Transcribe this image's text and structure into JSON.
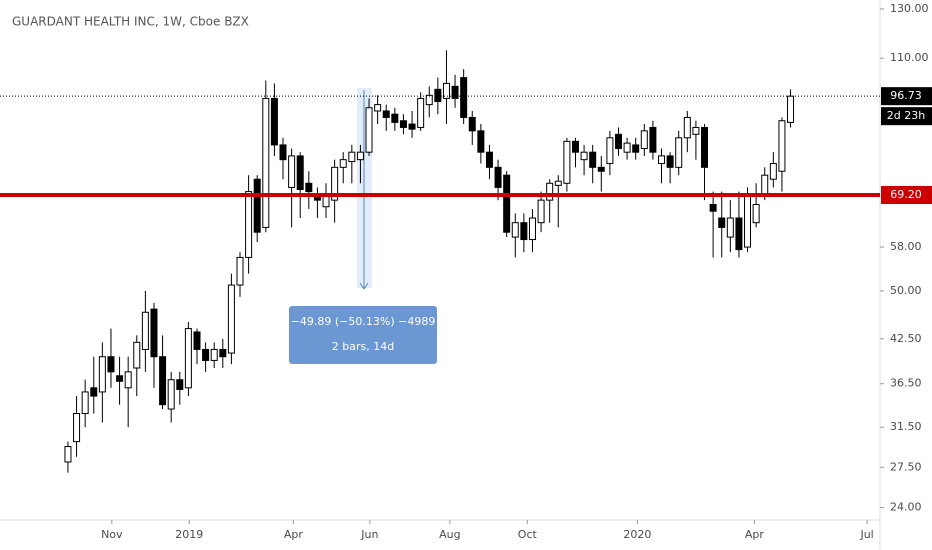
{
  "chart_data": {
    "type": "candlestick",
    "title": "GUARDANT HEALTH INC, 1W, Cboe BZX",
    "x": [
      0,
      1,
      2,
      3,
      4,
      5,
      6,
      7,
      8,
      9,
      10,
      11,
      12,
      13,
      14,
      15,
      16,
      17,
      18,
      19,
      20,
      21,
      22,
      23,
      24,
      25,
      26,
      27,
      28,
      29,
      30,
      31,
      32,
      33,
      34,
      35,
      36,
      37,
      38,
      39,
      40,
      41,
      42,
      43,
      44,
      45,
      46,
      47,
      48,
      49,
      50,
      51,
      52,
      53,
      54,
      55,
      56,
      57,
      58,
      59,
      60,
      61,
      62,
      63,
      64,
      65,
      66,
      67,
      68,
      69,
      70,
      71,
      72,
      73,
      74,
      75,
      76,
      77,
      78,
      79,
      80,
      81,
      82,
      83,
      84
    ],
    "open": [
      28,
      30,
      33,
      36,
      35.5,
      40,
      37.5,
      36,
      38.5,
      41,
      47,
      40,
      33.5,
      37,
      36,
      43.5,
      41,
      39.5,
      41,
      40.5,
      51,
      56,
      73,
      62,
      96,
      82,
      71,
      79,
      72,
      69.5,
      66.5,
      68,
      76,
      77.5,
      78,
      80,
      92,
      92,
      91,
      89,
      88,
      87,
      94,
      99,
      96,
      100,
      103,
      90,
      86,
      80,
      76,
      74,
      60,
      63,
      59.5,
      63,
      68,
      71.5,
      72,
      83,
      78,
      80,
      76,
      77,
      85,
      80,
      82,
      81,
      87,
      77,
      79,
      76,
      84,
      85,
      87,
      67,
      64,
      60,
      64,
      58,
      63,
      69,
      73,
      75,
      88.5
    ],
    "high": [
      30,
      35,
      37,
      40,
      42,
      44,
      40,
      40,
      43,
      50,
      48,
      43,
      38,
      38,
      45,
      44,
      42,
      42,
      42.5,
      53,
      57,
      74,
      74,
      102,
      101,
      84,
      81,
      80,
      75,
      71,
      72,
      78,
      80,
      82,
      82,
      96,
      97,
      94,
      93,
      91,
      92,
      98,
      100,
      103,
      113,
      104,
      106,
      92,
      88,
      82,
      78,
      75,
      65,
      65,
      66,
      70,
      73,
      74,
      84,
      84,
      82,
      82,
      79,
      86,
      87,
      84,
      84,
      88,
      89,
      81,
      80,
      86,
      92,
      89,
      88,
      70,
      70,
      68,
      70,
      71,
      72,
      76,
      80,
      90,
      99
    ],
    "low": [
      27,
      28.5,
      31.5,
      33,
      32,
      36,
      34,
      31.5,
      35,
      38,
      36,
      33.5,
      32,
      34,
      35,
      39,
      38,
      38.5,
      38.5,
      39,
      49,
      53,
      59,
      61,
      79,
      73,
      62,
      64,
      66,
      64,
      64,
      63,
      72,
      72,
      72,
      79,
      88,
      86,
      86,
      85,
      84,
      86,
      90,
      91,
      88,
      93,
      88,
      82,
      77,
      73,
      68,
      60,
      56,
      57,
      57,
      61,
      63,
      62,
      70,
      76,
      74,
      72,
      70,
      74,
      79,
      78,
      78,
      79,
      78,
      72,
      72,
      74,
      80,
      78,
      68,
      56,
      56,
      57,
      56,
      57,
      62,
      68,
      71,
      70,
      87
    ],
    "close": [
      29.5,
      33,
      35.5,
      35,
      40,
      38,
      36.8,
      38,
      42,
      46.5,
      40,
      34,
      37,
      35.8,
      44,
      41,
      39.5,
      41,
      40,
      51,
      56,
      70,
      61,
      96,
      82,
      78,
      79,
      70.5,
      70,
      68,
      69,
      76,
      78,
      80,
      80,
      93,
      94,
      90,
      88.5,
      87,
      86.5,
      96,
      97,
      95,
      101,
      96,
      90,
      86,
      80,
      76,
      71,
      61,
      63,
      59.5,
      64,
      68,
      72,
      72.5,
      83,
      80,
      80,
      76,
      75,
      84,
      81,
      82.5,
      80,
      86,
      80,
      79,
      76,
      84,
      90,
      87,
      76,
      65.5,
      62,
      64,
      57.5,
      69,
      67,
      74,
      77,
      89,
      96.73
    ],
    "up_color": "#ffffff",
    "down_color": "#000000",
    "wick_color": "#000000",
    "log_scale": true,
    "ylim": [
      23,
      134
    ],
    "yticks": [
      {
        "value": 24,
        "label": "24.00"
      },
      {
        "value": 27.5,
        "label": "27.50"
      },
      {
        "value": 31.5,
        "label": "31.50"
      },
      {
        "value": 36.5,
        "label": "36.50"
      },
      {
        "value": 42.5,
        "label": "42.50"
      },
      {
        "value": 50,
        "label": "50.00"
      },
      {
        "value": 58,
        "label": "58.00"
      },
      {
        "value": 110,
        "label": "110.00"
      },
      {
        "value": 130,
        "label": "130.00"
      }
    ],
    "xlim": [
      -7.9,
      94.4
    ],
    "xticks": [
      {
        "value": 5.1,
        "label": "Nov"
      },
      {
        "value": 14.1,
        "label": "2019"
      },
      {
        "value": 26.2,
        "label": "Apr"
      },
      {
        "value": 35.1,
        "label": "Jun"
      },
      {
        "value": 44.4,
        "label": "Aug"
      },
      {
        "value": 53.4,
        "label": "Oct"
      },
      {
        "value": 66.2,
        "label": "2020"
      },
      {
        "value": 79.8,
        "label": "Apr"
      },
      {
        "value": 92.9,
        "label": "Jul"
      }
    ],
    "hline": {
      "value": 69.2,
      "label": "69.20",
      "color": "#cc0000"
    },
    "last_price": {
      "value": 96.73,
      "label": "96.73",
      "countdown": "2d 23h"
    },
    "measure": {
      "line1": "−49.89 (−50.13%) −4989",
      "line2": "2 bars, 14d"
    }
  }
}
